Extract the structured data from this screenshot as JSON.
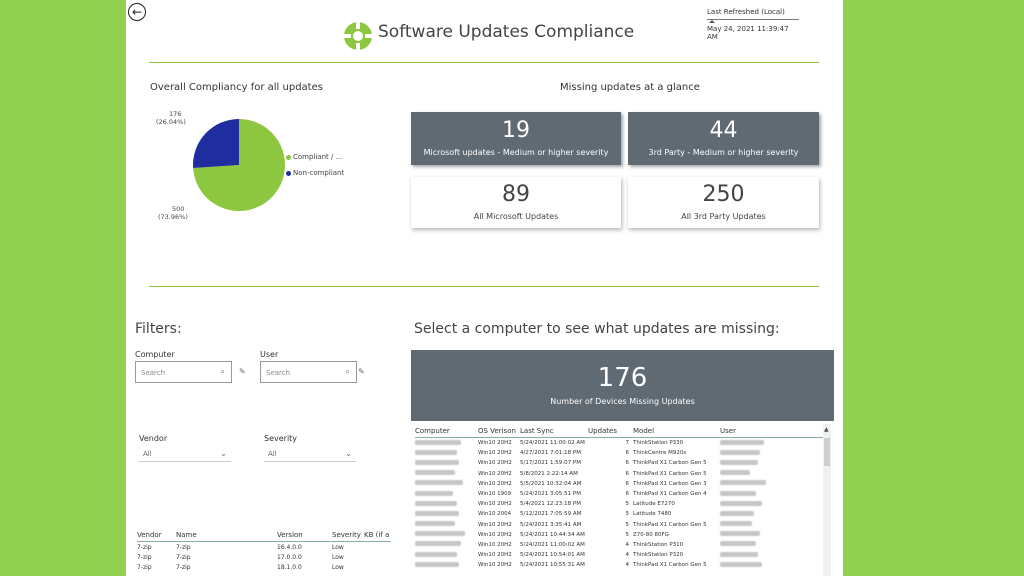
{
  "header": {
    "title": "Software Updates Compliance",
    "last_refreshed_label": "Last Refreshed (Local)",
    "last_refreshed_value": "May 24, 2021 11:39:47 AM",
    "back_icon": "back-arrow-icon",
    "logo_icon": "compliance-logo-icon",
    "accent_color": "#8dc63f"
  },
  "compliance": {
    "title": "Overall Compliancy for all updates",
    "slices": [
      {
        "label": "Compliant / ...",
        "value": 500,
        "percent": "(73.96%)",
        "color": "#8dc63f"
      },
      {
        "label": "Non-compliant",
        "value": 176,
        "percent": "(26.04%)",
        "color": "#1f2d9e"
      }
    ]
  },
  "glance": {
    "title": "Missing updates at a glance",
    "cards": [
      {
        "value": "19",
        "label": "Microsoft updates - Medium or higher severity"
      },
      {
        "value": "44",
        "label": "3rd Party - Medium or higher severity"
      },
      {
        "value": "89",
        "label": "All Microsoft Updates"
      },
      {
        "value": "250",
        "label": "All 3rd Party Updates"
      }
    ]
  },
  "filters": {
    "title": "Filters:",
    "computer_label": "Computer",
    "computer_placeholder": "Search",
    "user_label": "User",
    "user_placeholder": "Search",
    "vendor_label": "Vendor",
    "vendor_value": "All",
    "severity_label": "Severity",
    "severity_value": "All"
  },
  "vendor_table": {
    "headers": [
      "Vendor",
      "Name",
      "Version",
      "Severity",
      "KB (if a"
    ],
    "rows": [
      [
        "7-zip",
        "7-zip",
        "16.4.0.0",
        "Low"
      ],
      [
        "7-zip",
        "7-zip",
        "17.0.0.0",
        "Low"
      ],
      [
        "7-zip",
        "7-zip",
        "18.1.0.0",
        "Low"
      ]
    ]
  },
  "computers": {
    "title": "Select a computer to see what updates are missing:",
    "devices_missing": "176",
    "devices_missing_label": "Number of Devices Missing Updates",
    "headers": [
      "Computer",
      "OS Verison",
      "Last Sync",
      "Updates",
      "Model",
      "User"
    ],
    "rows": [
      [
        "Win10 20H2",
        "5/24/2021 11:00:02 AM",
        "7",
        "ThinkStation P330"
      ],
      [
        "Win10 20H2",
        "4/27/2021 7:01:18 PM",
        "6",
        "ThinkCentre M920s"
      ],
      [
        "Win10 20H2",
        "5/17/2021 1:59:07 PM",
        "6",
        "ThinkPad X1 Carbon Gen 5"
      ],
      [
        "Win10 20H2",
        "5/8/2021 2:22:14 AM",
        "6",
        "ThinkPad X1 Carbon Gen 5"
      ],
      [
        "Win10 20H2",
        "5/5/2021 10:32:04 AM",
        "6",
        "ThinkPad X1 Carbon Gen 3"
      ],
      [
        "Win10 1909",
        "5/24/2021 3:05:51 PM",
        "6",
        "ThinkPad X1 Carbon Gen 4"
      ],
      [
        "Win10 20H2",
        "5/4/2021 12:23:18 PM",
        "5",
        "Latitude E7270"
      ],
      [
        "Win10 2004",
        "5/12/2021 7:05:59 AM",
        "5",
        "Latitude 7480"
      ],
      [
        "Win10 20H2",
        "5/24/2021 3:35:41 AM",
        "5",
        "ThinkPad X1 Carbon Gen 5"
      ],
      [
        "Win10 20H2",
        "5/24/2021 10:44:34 AM",
        "5",
        "Z70-80 80FG"
      ],
      [
        "Win10 20H2",
        "5/24/2021 11:00:02 AM",
        "4",
        "ThinkStation P310"
      ],
      [
        "Win10 20H2",
        "5/24/2021 10:54:01 AM",
        "4",
        "ThinkStation P320"
      ],
      [
        "Win10 20H2",
        "5/24/2021 10:55:31 AM",
        "4",
        "ThinkPad X1 Carbon Gen 5"
      ]
    ]
  }
}
